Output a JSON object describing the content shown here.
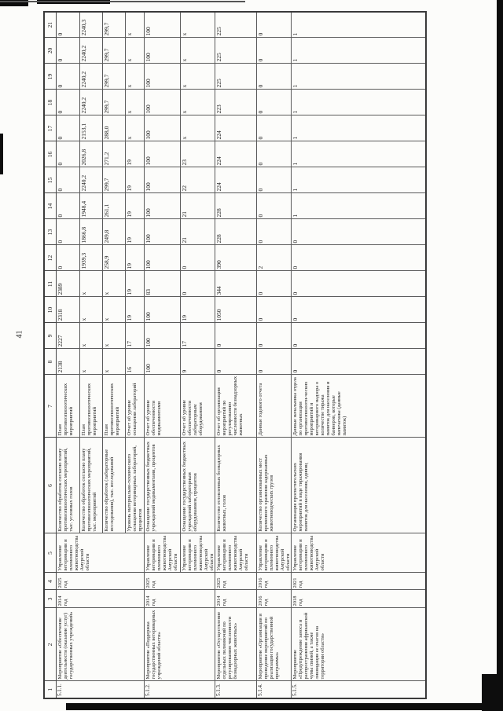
{
  "page": {
    "number": "41"
  },
  "table": {
    "header_numbers": [
      "1",
      "2",
      "3",
      "4",
      "5",
      "6",
      "7",
      "8",
      "9",
      "10",
      "11",
      "12",
      "13",
      "14",
      "15",
      "16",
      "17",
      "18",
      "19",
      "20",
      "21"
    ],
    "rows": [
      {
        "num": "5.1.1.",
        "name": "Мероприятие «Обеспечение деятельности (оказание услуг) государственных учреждений»",
        "start": "2014 год",
        "end": "2025 год",
        "executor": "Управление ветеринарии и племенного животноводства Амурской области",
        "indicators": [
          {
            "name": "Количество обработок согласно плану противоэпизоотических мероприятий, тыс. условных голов",
            "source": "План противоэпизоотических мероприятий",
            "values": [
              "2138",
              "2227",
              "2318",
              "2389",
              "0",
              "0",
              "0",
              "0",
              "0",
              "0",
              "0",
              "0",
              "0",
              "0"
            ]
          },
          {
            "name": "Количество обработок согласно плану противоэпизоотических мероприятий, тыс. мероприятий",
            "source": "План противоэпизоотических мероприятий",
            "values": [
              "х",
              "х",
              "х",
              "х",
              "1939,3",
              "1866,8",
              "1948,4",
              "2240,2",
              "2026,8",
              "2153,1",
              "2240,2",
              "2240,2",
              "2240,2",
              "2240,3"
            ]
          },
          {
            "name": "Количество обработок (лабораторные исследования), тыс. исследований",
            "source": "План противоэпизоотических мероприятий",
            "values": [
              "х",
              "х",
              "х",
              "х",
              "258,9",
              "249,8",
              "261,1",
              "299,7",
              "271,2",
              "288,0",
              "299,7",
              "299,7",
              "299,7",
              "299,7"
            ]
          },
          {
            "name": "Уровень материально-технического оснащения ветеринарных лабораторий, процентов",
            "source": "Отчет об уровне оснащения лабораторий",
            "values": [
              "16",
              "17",
              "19",
              "19",
              "19",
              "19",
              "19",
              "19",
              "19",
              "х",
              "х",
              "х",
              "х",
              "х"
            ]
          }
        ]
      },
      {
        "num": "5.1.2.",
        "name": "Мероприятие «Поддержка государственных ветеринарных учреждений области»",
        "start": "2014 год",
        "end": "2025 год",
        "executor": "Управление ветеринарии и племенного животноводства Амурской области",
        "executor_per_indicator": true,
        "indicators": [
          {
            "name": "Оснащение государственных бюджетных учреждений медикаментами, процентов",
            "source": "Отчет об уровне обеспеченности медикаментами",
            "values": [
              "100",
              "100",
              "100",
              "83",
              "100",
              "100",
              "100",
              "100",
              "100",
              "100",
              "100",
              "100",
              "100",
              "100"
            ]
          },
          {
            "name": "Оснащение государственных бюджетных учреждений лабораторным оборудованием, процентов",
            "source": "Отчет об уровне обеспеченности лабораторным оборудованием",
            "values": [
              "9",
              "17",
              "19",
              "0",
              "0",
              "21",
              "21",
              "22",
              "23",
              "х",
              "х",
              "х",
              "х",
              "х"
            ]
          }
        ]
      },
      {
        "num": "5.1.3.",
        "name": "Мероприятие «Осуществление отдельных полномочий по регулированию численности безнадзорных животных»",
        "start": "2014 год",
        "end": "2025 год",
        "executor": "Управление ветеринарии и племенного животноводства Амурской области",
        "indicators": [
          {
            "name": "Количество отловленных безнадзорных животных, голов",
            "source": "Отчет об организации мероприятий по регулированию численности безнадзорных животных",
            "values": [
              "0",
              "0",
              "1050",
              "344",
              "390",
              "228",
              "228",
              "224",
              "224",
              "224",
              "223",
              "225",
              "225",
              "225"
            ]
          }
        ]
      },
      {
        "num": "5.1.4.",
        "name": "Мероприятие «Организация и проведение мероприятий по реализации государственной программы»",
        "start": "2016 год",
        "end": "2016 год",
        "executor": "Управление ветеринарии и племенного животноводства Амурской области",
        "indicators": [
          {
            "name": "Количество организованных мест временного хранения задержанных животноводческих грузов",
            "source": "Данные годового отчета",
            "values": [
              "0",
              "0",
              "0",
              "0",
              "2",
              "0",
              "0",
              "0",
              "0",
              "0",
              "0",
              "0",
              "0",
              "0"
            ]
          }
        ]
      },
      {
        "num": "5.1.5.",
        "name": "Мероприятие «Предупреждение заноса и распространения африканской чумы свиней, а также ликвидация ее очагов на территории области»",
        "start": "2018 год",
        "end": "2021 год",
        "executor": "Управление ветеринарии и племенного животноводства Амурской области",
        "indicators": [
          {
            "name": "Организация просветительских мероприятий в виде тиражирования памяток для населения, единиц",
            "source": "Данные начальника отдела по организации противоэпизооти-ческих мероприятий и ветеринарного надзора о количестве тиража памяток для населения и баннеров, которые напечатаны (данные памяток)",
            "values": [
              "0",
              "0",
              "0",
              "0",
              "0",
              "0",
              "1",
              "1",
              "1",
              "1",
              "1",
              "1",
              "1",
              "1"
            ]
          }
        ]
      }
    ]
  }
}
